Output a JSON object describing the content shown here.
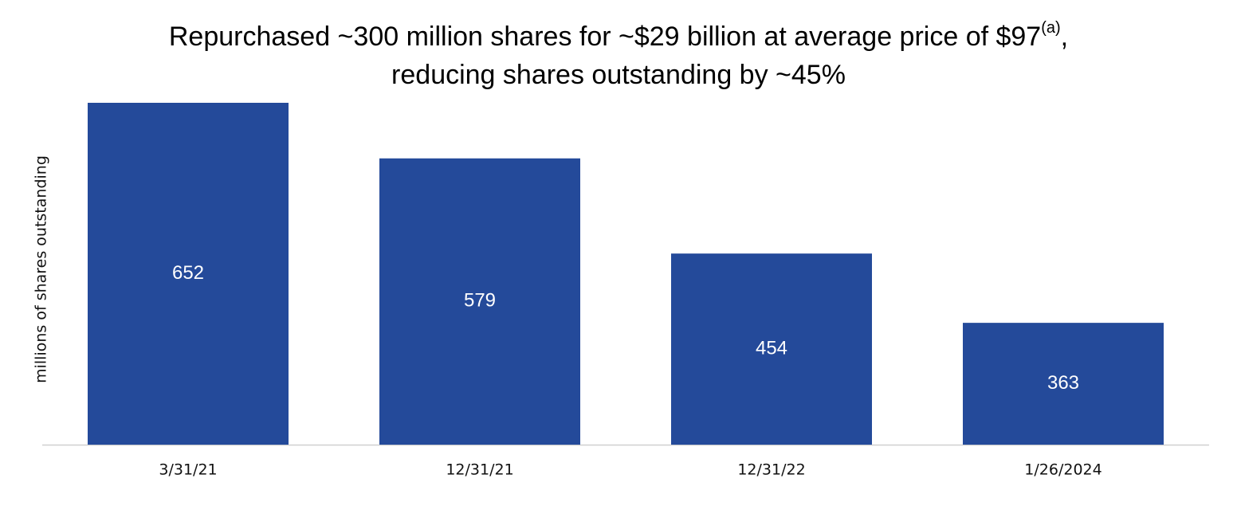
{
  "chart_data": {
    "type": "bar",
    "title": {
      "line1": "Repurchased ~300 million shares for ~$29 billion at average price of $97",
      "superscript": "(a)",
      "line1_end": ",",
      "line2": "reducing shares outstanding by ~45%"
    },
    "y_label": "millions of shares outstanding",
    "categories": [
      "3/31/21",
      "12/31/21",
      "12/31/22",
      "1/26/2024"
    ],
    "values": [
      652,
      579,
      454,
      363
    ],
    "color": "#244a9a",
    "ylim": [
      203,
      652
    ]
  }
}
